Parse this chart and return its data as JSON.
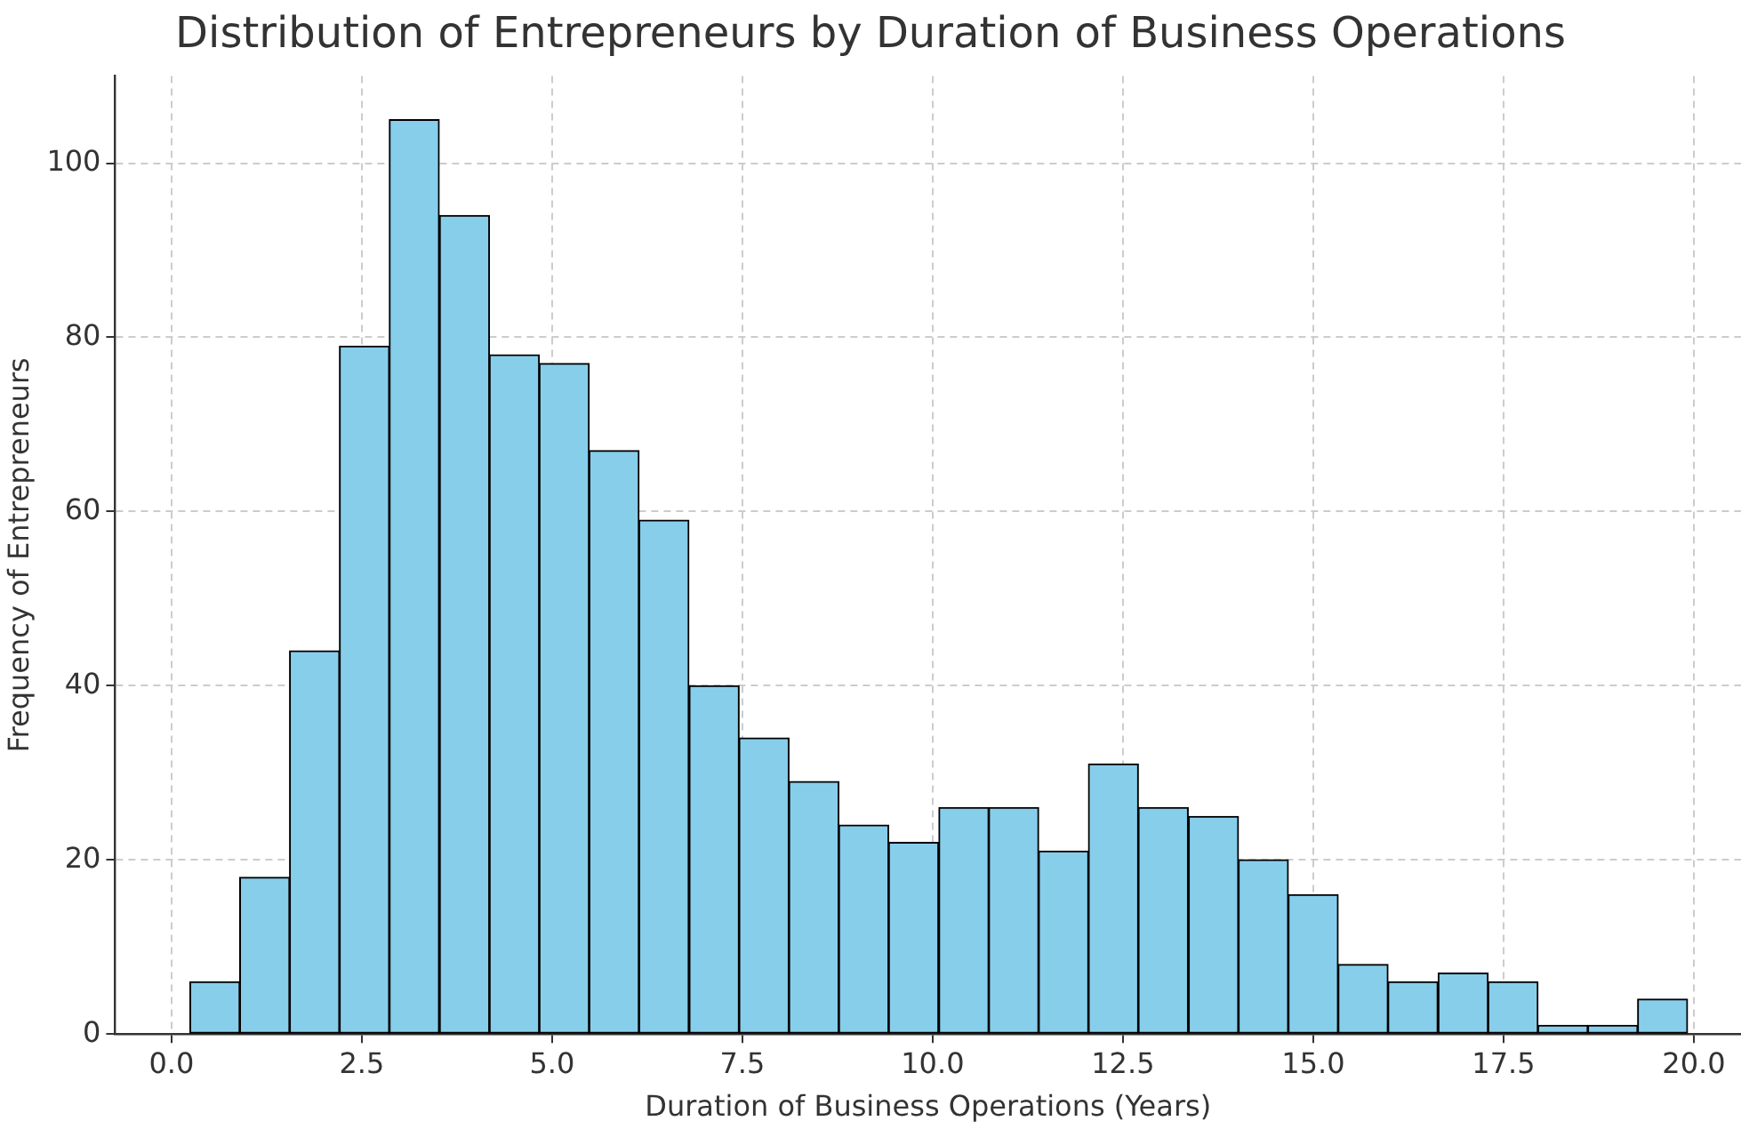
{
  "chart_data": {
    "type": "histogram",
    "title": "Distribution of Entrepreneurs by Duration of Business Operations",
    "xlabel": "Duration of Business Operations (Years)",
    "ylabel": "Frequency of Entrepreneurs",
    "bins": [
      0.24,
      0.9,
      1.55,
      2.21,
      2.86,
      3.52,
      4.18,
      4.83,
      5.49,
      6.14,
      6.8,
      7.46,
      8.11,
      8.77,
      9.42,
      10.08,
      10.74,
      11.39,
      12.05,
      12.7,
      13.36,
      14.02,
      14.67,
      15.33,
      15.98,
      16.64,
      17.3,
      17.95,
      18.61,
      19.26,
      19.92
    ],
    "values": [
      6,
      18,
      44,
      79,
      105,
      94,
      78,
      77,
      67,
      59,
      40,
      34,
      29,
      24,
      22,
      26,
      26,
      21,
      31,
      26,
      25,
      20,
      16,
      8,
      6,
      7,
      6,
      1,
      1,
      4
    ],
    "color": "#87ceeb",
    "xlim": [
      -0.74,
      20.62
    ],
    "ylim": [
      0,
      110
    ],
    "xticks": [
      {
        "value": 0,
        "label": "0.0"
      },
      {
        "value": 2.5,
        "label": "2.5"
      },
      {
        "value": 5,
        "label": "5.0"
      },
      {
        "value": 7.5,
        "label": "7.5"
      },
      {
        "value": 10,
        "label": "10.0"
      },
      {
        "value": 12.5,
        "label": "12.5"
      },
      {
        "value": 15,
        "label": "15.0"
      },
      {
        "value": 17.5,
        "label": "17.5"
      },
      {
        "value": 20,
        "label": "20.0"
      }
    ],
    "yticks": [
      0,
      20,
      40,
      60,
      80,
      100
    ],
    "grid": true
  }
}
